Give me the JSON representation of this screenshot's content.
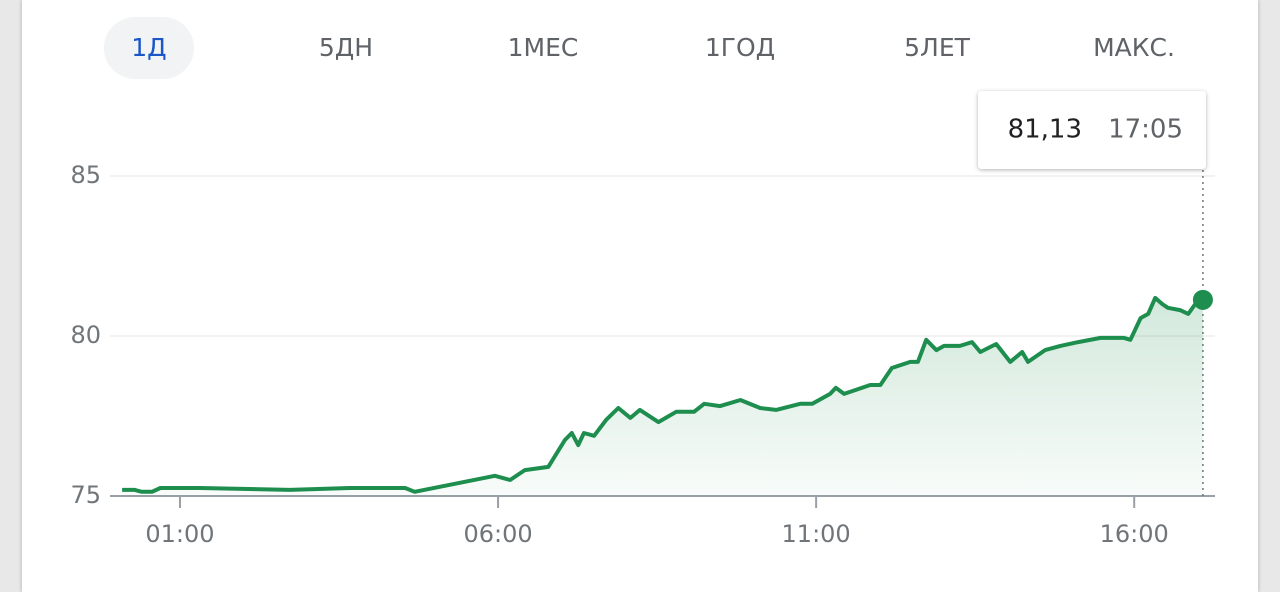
{
  "tabs": [
    "1Д",
    "5ДН",
    "1МЕС",
    "1ГОД",
    "5ЛЕТ",
    "МАКС."
  ],
  "tooltip": {
    "price": "81,13",
    "time": "17:05"
  },
  "chart_data": {
    "type": "line",
    "color": "#1e8e4e",
    "grid": true,
    "x": [
      0.09,
      0.29,
      0.4,
      0.56,
      0.69,
      1.31,
      2.73,
      3.67,
      4.54,
      4.69,
      5.95,
      6.19,
      6.42,
      6.79,
      7.05,
      7.16,
      7.26,
      7.35,
      7.51,
      7.7,
      7.89,
      8.08,
      8.23,
      8.52,
      8.8,
      9.08,
      9.24,
      9.49,
      9.81,
      10.12,
      10.37,
      10.75,
      10.94,
      11.22,
      11.31,
      11.44,
      11.85,
      12.01,
      12.19,
      12.48,
      12.6,
      12.73,
      12.89,
      13.01,
      13.26,
      13.45,
      13.58,
      13.83,
      14.05,
      14.24,
      14.33,
      14.6,
      14.84,
      15.12,
      15.47,
      15.84,
      15.94,
      16.1,
      16.22,
      16.33,
      16.44,
      16.53,
      16.72,
      16.85,
      16.96,
      17.08
    ],
    "values": [
      75.19,
      75.19,
      75.13,
      75.13,
      75.25,
      75.25,
      75.19,
      75.25,
      75.25,
      75.13,
      75.63,
      75.5,
      75.81,
      75.91,
      76.75,
      76.97,
      76.59,
      76.97,
      76.88,
      77.38,
      77.75,
      77.44,
      77.69,
      77.31,
      77.63,
      77.63,
      77.88,
      77.81,
      78.0,
      77.75,
      77.69,
      77.88,
      77.88,
      78.19,
      78.38,
      78.19,
      78.47,
      78.47,
      79.0,
      79.19,
      79.19,
      79.88,
      79.56,
      79.69,
      79.69,
      79.81,
      79.5,
      79.75,
      79.19,
      79.5,
      79.19,
      79.56,
      79.69,
      79.81,
      79.94,
      79.94,
      79.88,
      80.56,
      80.69,
      81.19,
      81.0,
      80.88,
      80.81,
      80.69,
      81.0,
      81.13
    ],
    "xlim": [
      -0.1,
      17.27
    ],
    "xticks": [
      {
        "value": 1,
        "label": "01:00"
      },
      {
        "value": 6,
        "label": "06:00"
      },
      {
        "value": 11,
        "label": "11:00"
      },
      {
        "value": 16,
        "label": "16:00"
      }
    ],
    "ylim": [
      75,
      85
    ],
    "yticks": [
      75,
      80,
      85
    ]
  }
}
